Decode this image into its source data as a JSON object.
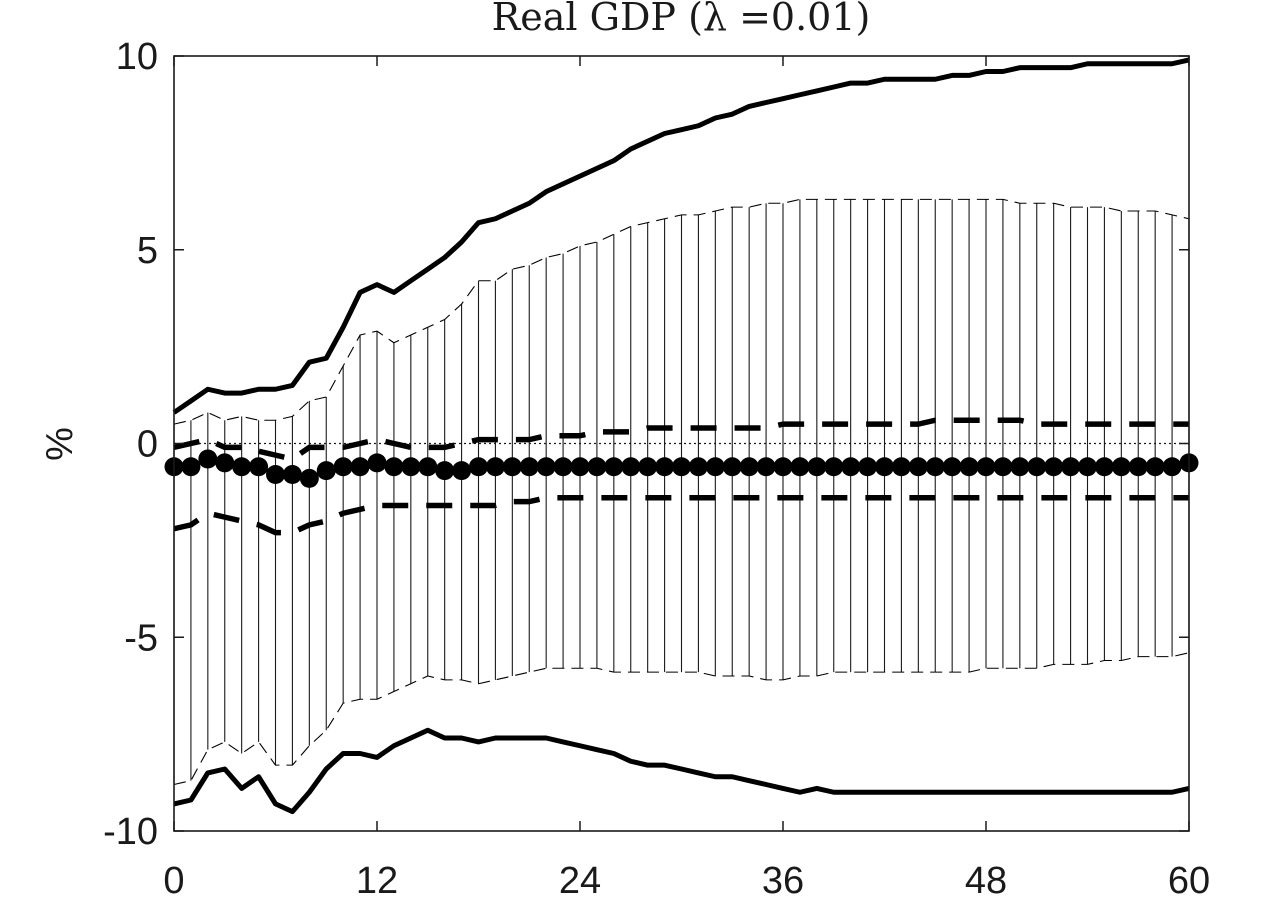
{
  "chart_data": {
    "type": "line",
    "title": "Real GDP (λ =0.01)",
    "xlabel": "",
    "ylabel": "%",
    "xlim": [
      0,
      60
    ],
    "ylim": [
      -10,
      10
    ],
    "xticks": [
      0,
      12,
      24,
      36,
      48,
      60
    ],
    "xtick_labels": [
      "0",
      "12",
      "24",
      "36",
      "48",
      "60"
    ],
    "yticks": [
      10,
      5,
      0,
      -5,
      -10
    ],
    "ytick_labels": [
      "10",
      "5",
      "0",
      "-5",
      "-10"
    ],
    "grid": false,
    "zero_line": 0,
    "x": [
      0,
      1,
      2,
      3,
      4,
      5,
      6,
      7,
      8,
      9,
      10,
      11,
      12,
      13,
      14,
      15,
      16,
      17,
      18,
      19,
      20,
      21,
      22,
      23,
      24,
      25,
      26,
      27,
      28,
      29,
      30,
      31,
      32,
      33,
      34,
      35,
      36,
      37,
      38,
      39,
      40,
      41,
      42,
      43,
      44,
      45,
      46,
      47,
      48,
      49,
      50,
      51,
      52,
      53,
      54,
      55,
      56,
      57,
      58,
      59,
      60
    ],
    "series": [
      {
        "role": "outer-upper",
        "style": "solid",
        "values": [
          0.8,
          1.1,
          1.4,
          1.3,
          1.3,
          1.4,
          1.4,
          1.5,
          2.1,
          2.2,
          3.0,
          3.9,
          4.1,
          3.9,
          4.2,
          4.5,
          4.8,
          5.2,
          5.7,
          5.8,
          6.0,
          6.2,
          6.5,
          6.7,
          6.9,
          7.1,
          7.3,
          7.6,
          7.8,
          8.0,
          8.1,
          8.2,
          8.4,
          8.5,
          8.7,
          8.8,
          8.9,
          9.0,
          9.1,
          9.2,
          9.3,
          9.3,
          9.4,
          9.4,
          9.4,
          9.4,
          9.5,
          9.5,
          9.6,
          9.6,
          9.7,
          9.7,
          9.7,
          9.7,
          9.8,
          9.8,
          9.8,
          9.8,
          9.8,
          9.8,
          9.9
        ]
      },
      {
        "role": "outer-lower",
        "style": "solid",
        "values": [
          -9.3,
          -9.2,
          -8.5,
          -8.4,
          -8.9,
          -8.6,
          -9.3,
          -9.5,
          -9.0,
          -8.4,
          -8.0,
          -8.0,
          -8.1,
          -7.8,
          -7.6,
          -7.4,
          -7.6,
          -7.6,
          -7.7,
          -7.6,
          -7.6,
          -7.6,
          -7.6,
          -7.7,
          -7.8,
          -7.9,
          -8.0,
          -8.2,
          -8.3,
          -8.3,
          -8.4,
          -8.5,
          -8.6,
          -8.6,
          -8.7,
          -8.8,
          -8.9,
          -9.0,
          -8.9,
          -9.0,
          -9.0,
          -9.0,
          -9.0,
          -9.0,
          -9.0,
          -9.0,
          -9.0,
          -9.0,
          -9.0,
          -9.0,
          -9.0,
          -9.0,
          -9.0,
          -9.0,
          -9.0,
          -9.0,
          -9.0,
          -9.0,
          -9.0,
          -9.0,
          -8.9
        ]
      },
      {
        "role": "band-upper",
        "style": "thin-dashed",
        "values": [
          0.5,
          0.6,
          0.8,
          0.6,
          0.7,
          0.6,
          0.6,
          0.7,
          1.1,
          1.2,
          2.0,
          2.8,
          2.9,
          2.6,
          2.8,
          3.0,
          3.2,
          3.6,
          4.2,
          4.2,
          4.5,
          4.6,
          4.8,
          4.9,
          5.1,
          5.2,
          5.4,
          5.6,
          5.7,
          5.8,
          5.9,
          5.9,
          6.0,
          6.1,
          6.1,
          6.2,
          6.2,
          6.3,
          6.3,
          6.3,
          6.3,
          6.3,
          6.3,
          6.3,
          6.3,
          6.3,
          6.3,
          6.3,
          6.3,
          6.3,
          6.2,
          6.2,
          6.2,
          6.1,
          6.1,
          6.1,
          6.0,
          6.0,
          6.0,
          5.9,
          5.8
        ]
      },
      {
        "role": "band-lower",
        "style": "thin-dashed",
        "values": [
          -8.8,
          -8.7,
          -7.9,
          -7.7,
          -8.0,
          -7.7,
          -8.3,
          -8.3,
          -7.8,
          -7.4,
          -6.7,
          -6.6,
          -6.6,
          -6.4,
          -6.2,
          -6.0,
          -6.1,
          -6.1,
          -6.2,
          -6.1,
          -6.0,
          -5.9,
          -5.8,
          -5.8,
          -5.8,
          -5.8,
          -5.9,
          -5.9,
          -5.9,
          -5.9,
          -5.9,
          -5.9,
          -6.0,
          -6.0,
          -6.0,
          -6.1,
          -6.1,
          -6.0,
          -6.0,
          -5.9,
          -5.9,
          -5.9,
          -5.9,
          -5.9,
          -5.9,
          -5.9,
          -5.9,
          -5.9,
          -5.8,
          -5.8,
          -5.8,
          -5.8,
          -5.7,
          -5.7,
          -5.7,
          -5.6,
          -5.6,
          -5.5,
          -5.5,
          -5.5,
          -5.4
        ]
      },
      {
        "role": "inner-upper",
        "style": "dashed",
        "values": [
          -0.1,
          0.0,
          0.1,
          -0.1,
          -0.1,
          -0.2,
          -0.3,
          -0.4,
          -0.1,
          -0.1,
          -0.1,
          0.0,
          0.1,
          0.0,
          -0.1,
          -0.1,
          -0.1,
          0.0,
          0.1,
          0.1,
          0.1,
          0.1,
          0.2,
          0.2,
          0.2,
          0.3,
          0.3,
          0.3,
          0.4,
          0.4,
          0.4,
          0.4,
          0.4,
          0.4,
          0.4,
          0.4,
          0.5,
          0.5,
          0.5,
          0.5,
          0.5,
          0.5,
          0.5,
          0.5,
          0.5,
          0.6,
          0.6,
          0.6,
          0.6,
          0.6,
          0.6,
          0.5,
          0.5,
          0.5,
          0.5,
          0.5,
          0.5,
          0.5,
          0.5,
          0.5,
          0.5
        ]
      },
      {
        "role": "inner-lower",
        "style": "dashed",
        "values": [
          -2.2,
          -2.1,
          -1.8,
          -1.9,
          -2.0,
          -2.1,
          -2.3,
          -2.3,
          -2.1,
          -2.0,
          -1.8,
          -1.7,
          -1.6,
          -1.6,
          -1.6,
          -1.6,
          -1.6,
          -1.6,
          -1.6,
          -1.6,
          -1.5,
          -1.5,
          -1.4,
          -1.4,
          -1.4,
          -1.4,
          -1.4,
          -1.4,
          -1.4,
          -1.4,
          -1.4,
          -1.4,
          -1.4,
          -1.4,
          -1.4,
          -1.4,
          -1.4,
          -1.4,
          -1.4,
          -1.4,
          -1.4,
          -1.4,
          -1.4,
          -1.4,
          -1.4,
          -1.4,
          -1.4,
          -1.4,
          -1.4,
          -1.4,
          -1.4,
          -1.4,
          -1.4,
          -1.4,
          -1.4,
          -1.4,
          -1.4,
          -1.4,
          -1.4,
          -1.4,
          -1.4
        ]
      },
      {
        "role": "point-estimate",
        "style": "markers",
        "values": [
          -0.6,
          -0.6,
          -0.4,
          -0.5,
          -0.6,
          -0.6,
          -0.8,
          -0.8,
          -0.9,
          -0.7,
          -0.6,
          -0.6,
          -0.5,
          -0.6,
          -0.6,
          -0.6,
          -0.7,
          -0.7,
          -0.6,
          -0.6,
          -0.6,
          -0.6,
          -0.6,
          -0.6,
          -0.6,
          -0.6,
          -0.6,
          -0.6,
          -0.6,
          -0.6,
          -0.6,
          -0.6,
          -0.6,
          -0.6,
          -0.6,
          -0.6,
          -0.6,
          -0.6,
          -0.6,
          -0.6,
          -0.6,
          -0.6,
          -0.6,
          -0.6,
          -0.6,
          -0.6,
          -0.6,
          -0.6,
          -0.6,
          -0.6,
          -0.6,
          -0.6,
          -0.6,
          -0.6,
          -0.6,
          -0.6,
          -0.6,
          -0.6,
          -0.6,
          -0.6,
          -0.5
        ]
      }
    ]
  }
}
